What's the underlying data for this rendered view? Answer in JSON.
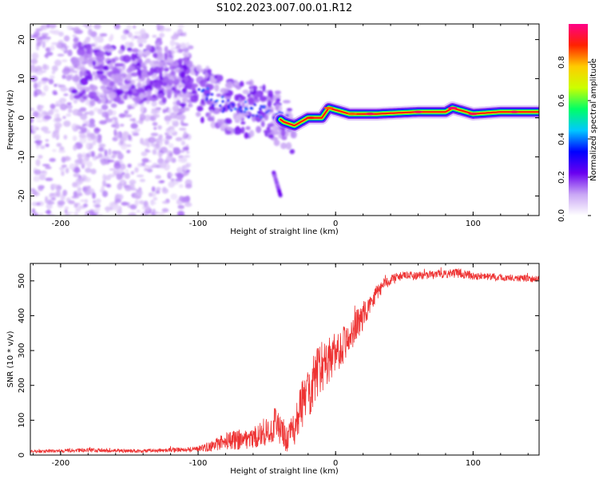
{
  "title": "S102.2023.007.00.01.R12",
  "chart_data": [
    {
      "type": "heatmap",
      "xlabel": "Height of straight line (km)",
      "ylabel": "Frequency (Hz)",
      "xlim": [
        -222,
        148
      ],
      "ylim": [
        -25,
        24
      ],
      "xticks": [
        -200,
        -100,
        0,
        100
      ],
      "yticks": [
        -20,
        -10,
        0,
        10,
        20
      ],
      "colorbar": {
        "label": "Normalized spectral amplitude",
        "range": [
          0,
          1
        ],
        "ticks": [
          0.0,
          0.2,
          0.4,
          0.6,
          0.8
        ],
        "colors": [
          "#ffffff",
          "#c9a6f5",
          "#6a00f0",
          "#0000ff",
          "#00c8ff",
          "#00ff66",
          "#ccff00",
          "#ffcc00",
          "#ff2200",
          "#ff0088"
        ]
      },
      "ridge_frequency": {
        "x": [
          -180,
          -160,
          -140,
          -120,
          -100,
          -80,
          -60,
          -45,
          -38,
          -30,
          -20,
          -10,
          -5,
          0,
          10,
          30,
          60,
          80,
          85,
          90,
          100,
          120,
          148
        ],
        "y": [
          12,
          11,
          11,
          11,
          7,
          3,
          2,
          1,
          -1,
          -2,
          0,
          0,
          2.5,
          2,
          1,
          1,
          1.5,
          1.5,
          2.5,
          2,
          1,
          1.5,
          1.5
        ],
        "amplitude": [
          0.15,
          0.15,
          0.15,
          0.12,
          0.15,
          0.2,
          0.22,
          0.2,
          0.25,
          0.4,
          0.55,
          0.7,
          0.8,
          0.75,
          0.85,
          0.9,
          0.9,
          0.92,
          0.95,
          0.92,
          0.9,
          0.9,
          0.85
        ]
      },
      "secondary_feature": {
        "x": [
          -45,
          -42,
          -40
        ],
        "y": [
          -14,
          -17,
          -20
        ]
      }
    },
    {
      "type": "line",
      "xlabel": "Height of straight line (km)",
      "ylabel": "SNR (10 * v/v)",
      "xlim": [
        -222,
        148
      ],
      "ylim": [
        0,
        550
      ],
      "xticks": [
        -200,
        -100,
        0,
        100
      ],
      "yticks": [
        0,
        100,
        200,
        300,
        400,
        500
      ],
      "line_color": "#ee3333",
      "x": [
        -222,
        -200,
        -180,
        -160,
        -140,
        -120,
        -100,
        -90,
        -80,
        -70,
        -60,
        -50,
        -45,
        -40,
        -35,
        -30,
        -25,
        -20,
        -15,
        -10,
        -5,
        0,
        10,
        20,
        30,
        40,
        50,
        60,
        70,
        80,
        90,
        100,
        110,
        120,
        130,
        148
      ],
      "y": [
        10,
        12,
        14,
        12,
        12,
        14,
        18,
        25,
        40,
        45,
        50,
        65,
        90,
        70,
        40,
        80,
        140,
        180,
        220,
        250,
        270,
        290,
        340,
        400,
        470,
        505,
        515,
        515,
        518,
        520,
        522,
        515,
        512,
        510,
        508,
        505
      ],
      "noise": [
        4,
        5,
        6,
        5,
        5,
        6,
        8,
        15,
        25,
        30,
        30,
        40,
        60,
        55,
        35,
        55,
        70,
        75,
        80,
        80,
        70,
        60,
        50,
        40,
        25,
        15,
        12,
        12,
        12,
        12,
        14,
        12,
        10,
        10,
        10,
        10
      ]
    }
  ]
}
